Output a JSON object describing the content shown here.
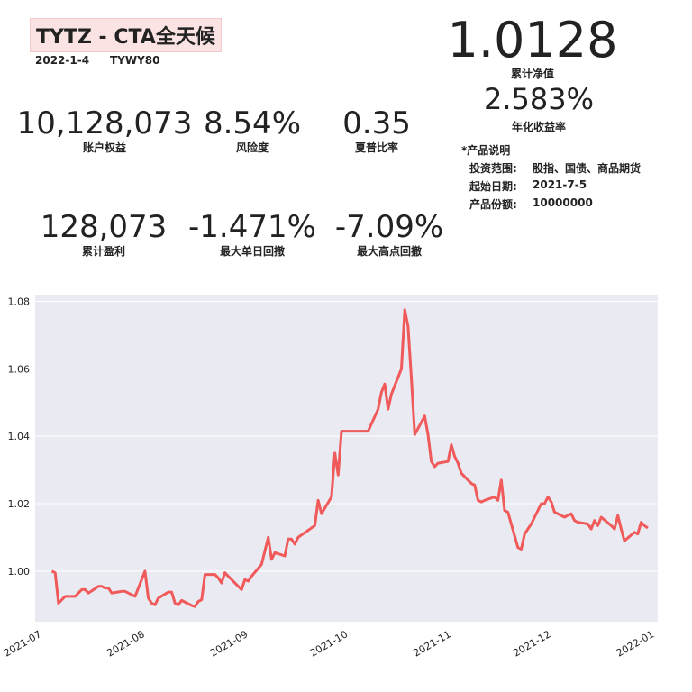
{
  "header": {
    "title": "TYTZ - CTA全天候",
    "date": "2022-1-4",
    "code": "TYWY80"
  },
  "nav": {
    "value": "1.0128",
    "label": "累计净值"
  },
  "annual": {
    "value": "2.583%",
    "label": "年化收益率"
  },
  "stats": [
    {
      "value": "10,128,073",
      "label": "账户权益"
    },
    {
      "value": "8.54%",
      "label": "风险度"
    },
    {
      "value": "0.35",
      "label": "夏普比率"
    },
    {
      "value": "128,073",
      "label": "累计盈利"
    },
    {
      "value": "-1.471%",
      "label": "最大单日回撤"
    },
    {
      "value": "-7.09%",
      "label": "最大高点回撤"
    }
  ],
  "product": {
    "heading": "*产品说明",
    "rows": [
      {
        "key": "投资范围:",
        "value": "股指、国债、商品期货"
      },
      {
        "key": "起始日期:",
        "value": "2021-7-5"
      },
      {
        "key": "产品份额:",
        "value": "10000000"
      }
    ]
  },
  "chart_data": {
    "type": "line",
    "title": "",
    "xlabel": "",
    "ylabel": "",
    "line_color": "#f05a5a",
    "background_color": "#eaeaf2",
    "grid": true,
    "x_ticks": [
      "2021-07",
      "2021-08",
      "2021-09",
      "2021-10",
      "2021-11",
      "2021-12",
      "2022-01"
    ],
    "y_ticks": [
      "1.00",
      "1.02",
      "1.04",
      "1.06",
      "1.08"
    ],
    "ylim": [
      0.985,
      1.082
    ],
    "xlim": [
      "2021-06-30",
      "2022-01-03"
    ],
    "series": [
      {
        "x": [
          "2021-07-05",
          "2021-07-06",
          "2021-07-07",
          "2021-07-08",
          "2021-07-09",
          "2021-07-12",
          "2021-07-13",
          "2021-07-14",
          "2021-07-15",
          "2021-07-16",
          "2021-07-19",
          "2021-07-20",
          "2021-07-21",
          "2021-07-22",
          "2021-07-23",
          "2021-07-26",
          "2021-07-27",
          "2021-07-28",
          "2021-07-29",
          "2021-07-30",
          "2021-08-02",
          "2021-08-03",
          "2021-08-04",
          "2021-08-05",
          "2021-08-06",
          "2021-08-09",
          "2021-08-10",
          "2021-08-11",
          "2021-08-12",
          "2021-08-13",
          "2021-08-16",
          "2021-08-17",
          "2021-08-18",
          "2021-08-19",
          "2021-08-20",
          "2021-08-23",
          "2021-08-24",
          "2021-08-25",
          "2021-08-26",
          "2021-08-27",
          "2021-08-30",
          "2021-08-31",
          "2021-09-01",
          "2021-09-02",
          "2021-09-03",
          "2021-09-06",
          "2021-09-07",
          "2021-09-08",
          "2021-09-09",
          "2021-09-10",
          "2021-09-13",
          "2021-09-14",
          "2021-09-15",
          "2021-09-16",
          "2021-09-17",
          "2021-09-22",
          "2021-09-23",
          "2021-09-24",
          "2021-09-27",
          "2021-09-28",
          "2021-09-29",
          "2021-09-30",
          "2021-10-08",
          "2021-10-11",
          "2021-10-12",
          "2021-10-13",
          "2021-10-14",
          "2021-10-15",
          "2021-10-18",
          "2021-10-19",
          "2021-10-20",
          "2021-10-21",
          "2021-10-22",
          "2021-10-25",
          "2021-10-26",
          "2021-10-27",
          "2021-10-28",
          "2021-10-29",
          "2021-11-01",
          "2021-11-02",
          "2021-11-03",
          "2021-11-04",
          "2021-11-05",
          "2021-11-08",
          "2021-11-09",
          "2021-11-10",
          "2021-11-11",
          "2021-11-12",
          "2021-11-15",
          "2021-11-16",
          "2021-11-17",
          "2021-11-18",
          "2021-11-19",
          "2021-11-22",
          "2021-11-23",
          "2021-11-24",
          "2021-11-25",
          "2021-11-26",
          "2021-11-29",
          "2021-11-30",
          "2021-12-01",
          "2021-12-02",
          "2021-12-03",
          "2021-12-06",
          "2021-12-07",
          "2021-12-08",
          "2021-12-09",
          "2021-12-10",
          "2021-12-13",
          "2021-12-14",
          "2021-12-15",
          "2021-12-16",
          "2021-12-17",
          "2021-12-20",
          "2021-12-21",
          "2021-12-22",
          "2021-12-23",
          "2021-12-24",
          "2021-12-27",
          "2021-12-28",
          "2021-12-29",
          "2021-12-30",
          "2021-12-31"
        ],
        "y": [
          1.0,
          0.9995,
          0.9905,
          0.9915,
          0.9925,
          0.9925,
          0.9935,
          0.9945,
          0.9945,
          0.9935,
          0.9955,
          0.9955,
          0.995,
          0.995,
          0.9935,
          0.994,
          0.994,
          0.9935,
          0.993,
          0.9925,
          1.0,
          0.992,
          0.9905,
          0.99,
          0.992,
          0.9938,
          0.9938,
          0.9905,
          0.99,
          0.9913,
          0.9898,
          0.9895,
          0.991,
          0.9915,
          0.999,
          0.999,
          0.998,
          0.9965,
          0.9995,
          0.9985,
          0.9955,
          0.9945,
          0.9975,
          0.997,
          0.9985,
          1.002,
          1.006,
          1.01,
          1.0035,
          1.0055,
          1.0045,
          1.0095,
          1.0095,
          1.008,
          1.01,
          1.0135,
          1.021,
          1.017,
          1.022,
          1.035,
          1.0285,
          1.0415,
          1.0415,
          1.048,
          1.053,
          1.0555,
          1.048,
          1.0525,
          1.06,
          1.0775,
          1.0725,
          1.057,
          1.0405,
          1.046,
          1.0405,
          1.0325,
          1.031,
          1.032,
          1.0325,
          1.0375,
          1.034,
          1.032,
          1.029,
          1.026,
          1.0255,
          1.021,
          1.0205,
          1.021,
          1.022,
          1.021,
          1.027,
          1.018,
          1.0175,
          1.007,
          1.0065,
          1.011,
          1.0125,
          1.014,
          1.02,
          1.02,
          1.022,
          1.0205,
          1.0175,
          1.016,
          1.0165,
          1.017,
          1.015,
          1.0145,
          1.014,
          1.0125,
          1.015,
          1.0135,
          1.016,
          1.0135,
          1.0125,
          1.0165,
          1.0125,
          1.009,
          1.0115,
          1.011,
          1.0145,
          1.0135,
          1.0128
        ]
      }
    ]
  }
}
